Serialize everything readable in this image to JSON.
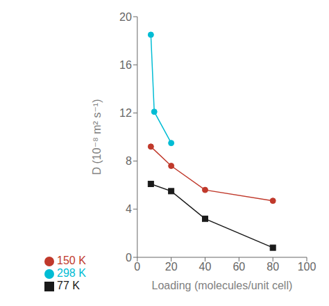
{
  "chart_data": {
    "type": "line",
    "xlabel": "Loading (molecules/unit cell)",
    "ylabel": "D (10⁻⁸ m² s⁻¹)",
    "xlim": [
      0,
      100
    ],
    "ylim": [
      0,
      20
    ],
    "xticks": [
      0,
      20,
      40,
      60,
      80,
      100
    ],
    "yticks": [
      0,
      4,
      8,
      12,
      16,
      20
    ],
    "grid": false,
    "legend": "bottom",
    "series": [
      {
        "name": "77 K",
        "color": "#1a1a1a",
        "marker": "square",
        "line_style": "solid",
        "x": [
          8,
          20,
          40,
          80
        ],
        "values": [
          6.1,
          5.5,
          3.2,
          0.8
        ]
      },
      {
        "name": "150 K",
        "color": "#c0392b",
        "marker": "circle",
        "line_style": "solid",
        "x": [
          8,
          20,
          40,
          80
        ],
        "values": [
          9.2,
          7.6,
          5.6,
          4.7
        ]
      },
      {
        "name": "298 K",
        "color": "#00bcd4",
        "marker": "circle",
        "line_style": "solid",
        "x": [
          8,
          10,
          20
        ],
        "values": [
          18.5,
          12.1,
          9.5
        ]
      }
    ]
  }
}
